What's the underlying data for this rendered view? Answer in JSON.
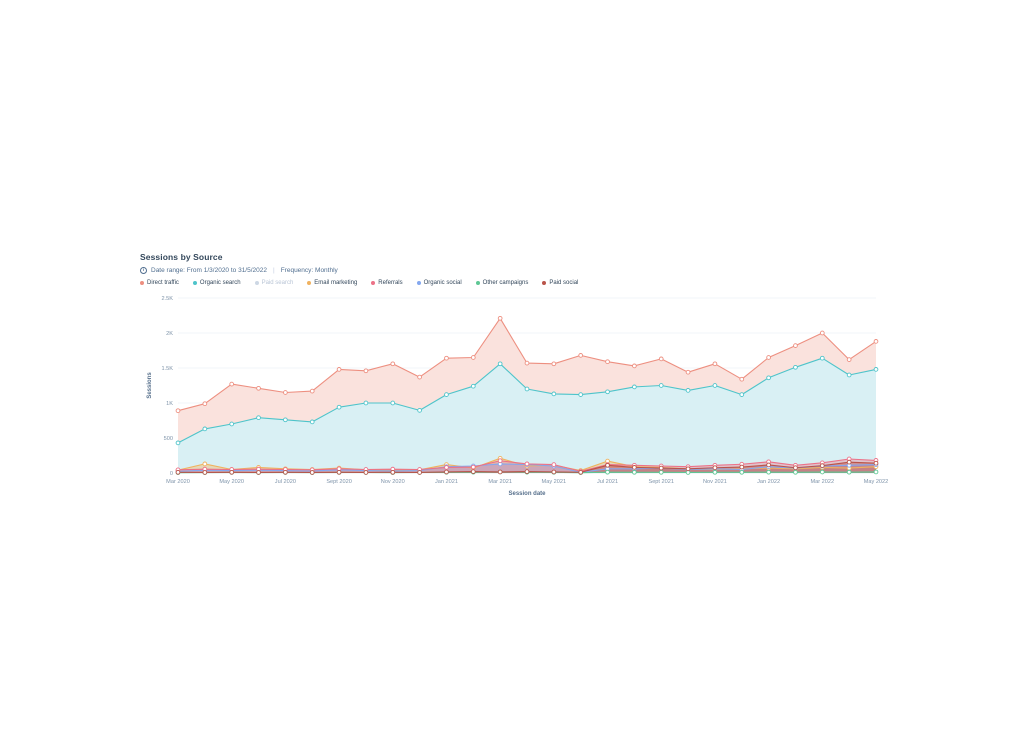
{
  "report": {
    "title": "Sessions by Source",
    "meta": {
      "date_range": "Date range: From 1/3/2020 to 31/5/2022",
      "separator": "|",
      "frequency": "Frequency: Monthly"
    },
    "legend": [
      {
        "label": "Direct traffic",
        "color": "#ed8f80",
        "disabled": false
      },
      {
        "label": "Organic search",
        "color": "#4ec4ca",
        "disabled": false
      },
      {
        "label": "Paid search",
        "color": "#cdd7e4",
        "disabled": true
      },
      {
        "label": "Email marketing",
        "color": "#f0b25f",
        "disabled": false
      },
      {
        "label": "Referrals",
        "color": "#ec7288",
        "disabled": false
      },
      {
        "label": "Organic social",
        "color": "#84a7ef",
        "disabled": false
      },
      {
        "label": "Other campaigns",
        "color": "#5ec794",
        "disabled": false
      },
      {
        "label": "Paid social",
        "color": "#b9544a",
        "disabled": false
      }
    ],
    "colors": {
      "title": "#33475b",
      "meta": "#516f90",
      "axis_text": "#7f94aa",
      "axis_title": "#57708c"
    }
  },
  "chart_data": {
    "type": "area",
    "stacked": false,
    "title": "Sessions by Source",
    "xlabel": "Session date",
    "ylabel": "Sessions",
    "ylim": [
      0,
      2500
    ],
    "grid": "horizontal",
    "legend_position": "top",
    "ytick_values": [
      0,
      500,
      1000,
      1500,
      2000,
      2500
    ],
    "ytick_labels": [
      "0",
      "500",
      "1K",
      "1.5K",
      "2K",
      "2.5K"
    ],
    "x": [
      "Mar 2020",
      "Apr 2020",
      "May 2020",
      "Jun 2020",
      "Jul 2020",
      "Aug 2020",
      "Sept 2020",
      "Oct 2020",
      "Nov 2020",
      "Dec 2020",
      "Jan 2021",
      "Feb 2021",
      "Mar 2021",
      "Apr 2021",
      "May 2021",
      "Jun 2021",
      "Jul 2021",
      "Aug 2021",
      "Sept 2021",
      "Oct 2021",
      "Nov 2021",
      "Dec 2021",
      "Jan 2022",
      "Feb 2022",
      "Mar 2022",
      "Apr 2022",
      "May 2022"
    ],
    "xtick_every": 2,
    "xtick_labels": [
      "Mar 2020",
      "May 2020",
      "Jul 2020",
      "Sept 2020",
      "Nov 2020",
      "Jan 2021",
      "Mar 2021",
      "May 2021",
      "Jul 2021",
      "Sept 2021",
      "Nov 2021",
      "Jan 2022",
      "Mar 2022",
      "May 2022"
    ],
    "series": [
      {
        "name": "Direct traffic",
        "color": "#ed8f80",
        "fill": "#fae2dd",
        "values": [
          890,
          990,
          1270,
          1210,
          1150,
          1170,
          1480,
          1460,
          1560,
          1370,
          1640,
          1650,
          2210,
          1570,
          1560,
          1680,
          1590,
          1530,
          1630,
          1440,
          1560,
          1340,
          1650,
          1820,
          2000,
          1620,
          1880
        ]
      },
      {
        "name": "Organic search",
        "color": "#4ec4ca",
        "fill": "#d9f0f4",
        "values": [
          430,
          630,
          700,
          790,
          760,
          730,
          940,
          1000,
          1000,
          895,
          1120,
          1240,
          1560,
          1200,
          1130,
          1120,
          1160,
          1230,
          1250,
          1180,
          1250,
          1120,
          1360,
          1510,
          1640,
          1400,
          1480
        ]
      },
      {
        "name": "Email marketing",
        "color": "#f0b25f",
        "fill": "rgba(243,188,110,0.45)",
        "values": [
          40,
          130,
          50,
          80,
          60,
          50,
          70,
          45,
          40,
          45,
          120,
          70,
          210,
          100,
          110,
          35,
          170,
          90,
          80,
          60,
          50,
          60,
          70,
          60,
          80,
          70,
          90
        ]
      },
      {
        "name": "Organic social",
        "color": "#84a7ef",
        "fill": "rgba(136,170,240,0.5)",
        "values": [
          25,
          40,
          35,
          40,
          35,
          30,
          45,
          35,
          30,
          35,
          90,
          100,
          130,
          120,
          100,
          10,
          60,
          60,
          70,
          50,
          60,
          50,
          90,
          70,
          100,
          110,
          120
        ]
      },
      {
        "name": "Referrals",
        "color": "#ec7288",
        "fill": "rgba(238,124,144,0.4)",
        "values": [
          45,
          55,
          50,
          55,
          50,
          45,
          60,
          50,
          55,
          50,
          80,
          85,
          175,
          130,
          120,
          25,
          120,
          110,
          100,
          90,
          110,
          125,
          160,
          110,
          145,
          200,
          180
        ]
      },
      {
        "name": "Other campaigns",
        "color": "#5ec794",
        "fill": "rgba(102,207,155,0.4)",
        "values": [
          5,
          6,
          8,
          6,
          7,
          6,
          8,
          7,
          6,
          7,
          10,
          12,
          15,
          12,
          10,
          5,
          12,
          10,
          10,
          8,
          10,
          10,
          12,
          10,
          14,
          12,
          15
        ]
      },
      {
        "name": "Paid social",
        "color": "#b9544a",
        "fill": "rgba(188,84,74,0.45)",
        "values": [
          10,
          8,
          10,
          8,
          10,
          8,
          10,
          8,
          10,
          8,
          15,
          20,
          15,
          20,
          15,
          10,
          110,
          80,
          70,
          60,
          75,
          85,
          115,
          75,
          105,
          155,
          140
        ]
      }
    ]
  }
}
